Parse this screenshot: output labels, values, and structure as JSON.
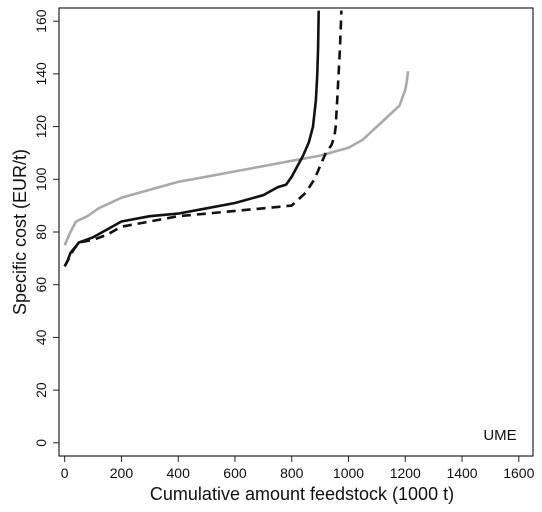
{
  "chart_data": {
    "type": "line",
    "title": "",
    "xlabel": "Cumulative amount feedstock (1000 t)",
    "ylabel": "Specific cost (EUR/t)",
    "xlim": [
      -20,
      1650
    ],
    "ylim": [
      -5,
      165
    ],
    "x_ticks": [
      0,
      200,
      400,
      600,
      800,
      1000,
      1200,
      1400,
      1600
    ],
    "y_ticks": [
      0,
      20,
      40,
      60,
      80,
      100,
      120,
      140,
      160
    ],
    "annotation": "UME",
    "grid": false,
    "legend": "none",
    "series": [
      {
        "color": "#aaaaaa",
        "style": "solid",
        "points": [
          [
            0,
            75
          ],
          [
            20,
            80
          ],
          [
            40,
            84
          ],
          [
            80,
            86
          ],
          [
            120,
            89
          ],
          [
            200,
            93
          ],
          [
            300,
            96
          ],
          [
            400,
            99
          ],
          [
            500,
            101
          ],
          [
            600,
            103
          ],
          [
            700,
            105
          ],
          [
            800,
            107
          ],
          [
            900,
            109
          ],
          [
            1000,
            112
          ],
          [
            1050,
            115
          ],
          [
            1100,
            120
          ],
          [
            1150,
            125
          ],
          [
            1180,
            128
          ],
          [
            1190,
            131
          ],
          [
            1200,
            134
          ],
          [
            1205,
            137
          ],
          [
            1210,
            141
          ]
        ]
      },
      {
        "color": "#111111",
        "style": "solid",
        "points": [
          [
            0,
            67
          ],
          [
            10,
            69
          ],
          [
            20,
            72
          ],
          [
            50,
            76
          ],
          [
            100,
            78
          ],
          [
            150,
            81
          ],
          [
            200,
            84
          ],
          [
            300,
            86
          ],
          [
            400,
            87
          ],
          [
            500,
            89
          ],
          [
            600,
            91
          ],
          [
            700,
            94
          ],
          [
            750,
            97
          ],
          [
            780,
            98
          ],
          [
            800,
            101
          ],
          [
            820,
            105
          ],
          [
            840,
            109
          ],
          [
            860,
            114
          ],
          [
            875,
            120
          ],
          [
            885,
            130
          ],
          [
            890,
            140
          ],
          [
            893,
            150
          ],
          [
            895,
            164
          ]
        ]
      },
      {
        "color": "#111111",
        "style": "dashed",
        "points": [
          [
            0,
            67
          ],
          [
            10,
            69
          ],
          [
            30,
            73
          ],
          [
            50,
            76
          ],
          [
            100,
            77
          ],
          [
            150,
            79
          ],
          [
            200,
            82
          ],
          [
            300,
            84
          ],
          [
            400,
            86
          ],
          [
            500,
            87
          ],
          [
            600,
            88
          ],
          [
            700,
            89
          ],
          [
            800,
            90
          ],
          [
            850,
            95
          ],
          [
            880,
            100
          ],
          [
            900,
            105
          ],
          [
            920,
            110
          ],
          [
            940,
            113
          ],
          [
            950,
            116
          ],
          [
            955,
            120
          ],
          [
            960,
            130
          ],
          [
            965,
            140
          ],
          [
            970,
            150
          ],
          [
            975,
            164
          ]
        ]
      }
    ]
  }
}
